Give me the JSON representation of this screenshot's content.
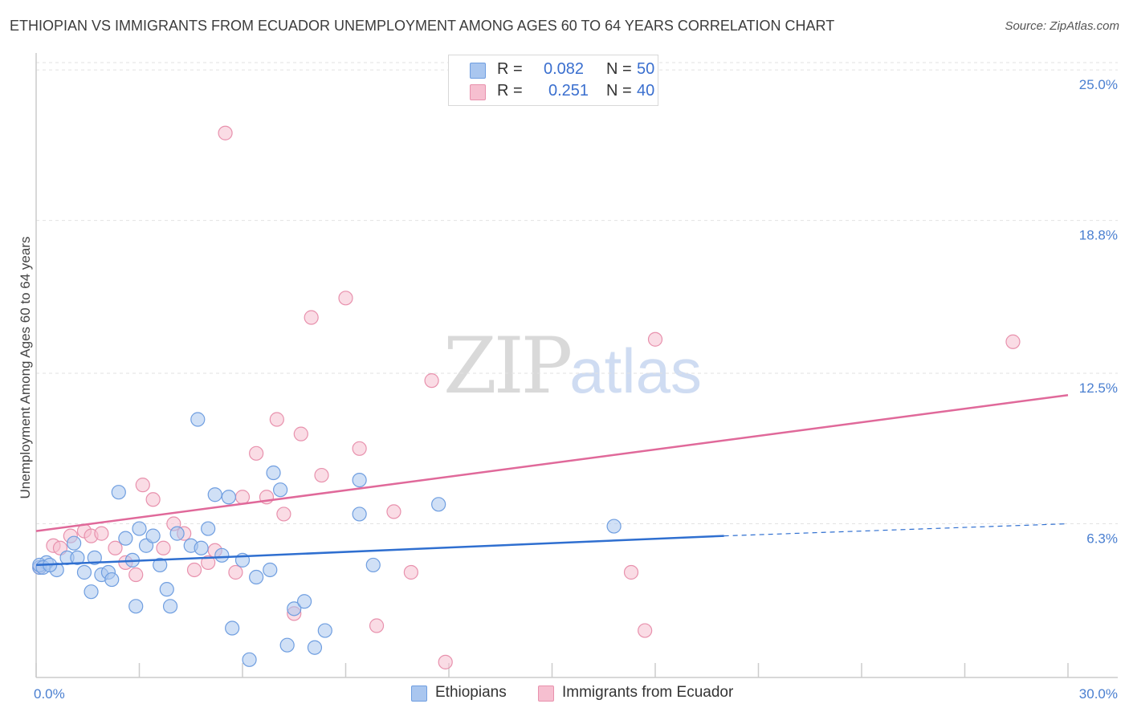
{
  "header": {
    "title": "ETHIOPIAN VS IMMIGRANTS FROM ECUADOR UNEMPLOYMENT AMONG AGES 60 TO 64 YEARS CORRELATION CHART",
    "source": "Source: ZipAtlas.com"
  },
  "watermark": {
    "zip": "ZIP",
    "atlas": "atlas"
  },
  "legend_top": {
    "rows": [
      {
        "r_label": "R = ",
        "r_value": "0.082",
        "n_label": "N = ",
        "n_value": "50"
      },
      {
        "r_label": "R = ",
        "r_value": "0.251",
        "n_label": "N = ",
        "n_value": "40"
      }
    ]
  },
  "legend_bottom": {
    "items": [
      {
        "label": "Ethiopians"
      },
      {
        "label": "Immigrants from Ecuador"
      }
    ]
  },
  "colors": {
    "blue_fill": "#a9c6ef",
    "blue_stroke": "#6f9ee0",
    "blue_line": "#2f6fd0",
    "pink_fill": "#f6bfd0",
    "pink_stroke": "#e891ad",
    "pink_line": "#e0699a",
    "grid": "#e2e2e2",
    "axis": "#cccccc",
    "tick_label": "#4a7fd0"
  },
  "chart_data": {
    "type": "scatter",
    "title": "ETHIOPIAN VS IMMIGRANTS FROM ECUADOR UNEMPLOYMENT AMONG AGES 60 TO 64 YEARS CORRELATION CHART",
    "xlabel": "",
    "ylabel": "Unemployment Among Ages 60 to 64 years",
    "xlim": [
      0,
      30
    ],
    "ylim": [
      0,
      25.5
    ],
    "x_tick_labels": [
      {
        "value": 0,
        "label": "0.0%"
      },
      {
        "value": 30,
        "label": "30.0%"
      }
    ],
    "x_minor_ticks": [
      0,
      3,
      6,
      9,
      12,
      15,
      18,
      21,
      24,
      27,
      30
    ],
    "y_ticks": [
      {
        "value": 6.3,
        "label": "6.3%"
      },
      {
        "value": 12.5,
        "label": "12.5%"
      },
      {
        "value": 18.8,
        "label": "18.8%"
      },
      {
        "value": 25.0,
        "label": "25.0%"
      }
    ],
    "grid": true,
    "legend_position": "top-center",
    "series": [
      {
        "name": "Ethiopians",
        "color": "#6f9ee0",
        "R": 0.082,
        "N": 50,
        "trend": {
          "x0": 0,
          "y0": 4.6,
          "x1": 20.0,
          "y1": 5.8,
          "dash_to_x": 30,
          "dash_to_y": 6.3
        },
        "points": [
          [
            0.1,
            4.5
          ],
          [
            0.3,
            4.7
          ],
          [
            0.6,
            4.4
          ],
          [
            0.9,
            4.9
          ],
          [
            1.1,
            5.5
          ],
          [
            1.2,
            4.9
          ],
          [
            1.4,
            4.3
          ],
          [
            1.6,
            3.5
          ],
          [
            1.7,
            4.9
          ],
          [
            1.9,
            4.2
          ],
          [
            2.1,
            4.3
          ],
          [
            2.2,
            4.0
          ],
          [
            2.4,
            7.6
          ],
          [
            2.6,
            5.7
          ],
          [
            2.8,
            4.8
          ],
          [
            2.9,
            2.9
          ],
          [
            3.0,
            6.1
          ],
          [
            3.2,
            5.4
          ],
          [
            3.4,
            5.8
          ],
          [
            3.6,
            4.6
          ],
          [
            3.8,
            3.6
          ],
          [
            3.9,
            2.9
          ],
          [
            4.1,
            5.9
          ],
          [
            4.5,
            5.4
          ],
          [
            4.7,
            10.6
          ],
          [
            4.8,
            5.3
          ],
          [
            5.0,
            6.1
          ],
          [
            5.2,
            7.5
          ],
          [
            5.4,
            5.0
          ],
          [
            5.6,
            7.4
          ],
          [
            5.7,
            2.0
          ],
          [
            6.0,
            4.8
          ],
          [
            6.2,
            0.7
          ],
          [
            6.4,
            4.1
          ],
          [
            6.8,
            4.4
          ],
          [
            6.9,
            8.4
          ],
          [
            7.1,
            7.7
          ],
          [
            7.3,
            1.3
          ],
          [
            7.5,
            2.8
          ],
          [
            7.8,
            3.1
          ],
          [
            8.1,
            1.2
          ],
          [
            8.4,
            1.9
          ],
          [
            9.4,
            8.1
          ],
          [
            9.4,
            6.7
          ],
          [
            9.8,
            4.6
          ],
          [
            11.7,
            7.1
          ],
          [
            16.8,
            6.2
          ],
          [
            0.1,
            4.6
          ],
          [
            0.2,
            4.5
          ],
          [
            0.4,
            4.6
          ]
        ]
      },
      {
        "name": "Immigrants from Ecuador",
        "color": "#e891ad",
        "R": 0.251,
        "N": 40,
        "trend": {
          "x0": 0,
          "y0": 6.0,
          "x1": 30,
          "y1": 11.6
        },
        "points": [
          [
            0.1,
            4.5
          ],
          [
            0.5,
            5.4
          ],
          [
            0.7,
            5.3
          ],
          [
            1.0,
            5.8
          ],
          [
            1.4,
            6.0
          ],
          [
            1.6,
            5.8
          ],
          [
            1.9,
            5.9
          ],
          [
            2.3,
            5.3
          ],
          [
            2.6,
            4.7
          ],
          [
            2.9,
            4.2
          ],
          [
            3.1,
            7.9
          ],
          [
            3.4,
            7.3
          ],
          [
            3.7,
            5.3
          ],
          [
            4.0,
            6.3
          ],
          [
            4.3,
            5.9
          ],
          [
            4.6,
            4.4
          ],
          [
            5.0,
            4.7
          ],
          [
            5.2,
            5.2
          ],
          [
            5.5,
            22.4
          ],
          [
            5.8,
            4.3
          ],
          [
            6.0,
            7.4
          ],
          [
            6.4,
            9.2
          ],
          [
            6.7,
            7.4
          ],
          [
            7.0,
            10.6
          ],
          [
            7.2,
            6.7
          ],
          [
            7.5,
            2.6
          ],
          [
            7.7,
            10.0
          ],
          [
            8.0,
            14.8
          ],
          [
            8.3,
            8.3
          ],
          [
            9.0,
            15.6
          ],
          [
            9.4,
            9.4
          ],
          [
            9.9,
            2.1
          ],
          [
            10.4,
            6.8
          ],
          [
            10.9,
            4.3
          ],
          [
            11.5,
            12.2
          ],
          [
            11.9,
            0.6
          ],
          [
            17.3,
            4.3
          ],
          [
            17.7,
            1.9
          ],
          [
            18.0,
            13.9
          ],
          [
            28.4,
            13.8
          ]
        ]
      }
    ]
  }
}
